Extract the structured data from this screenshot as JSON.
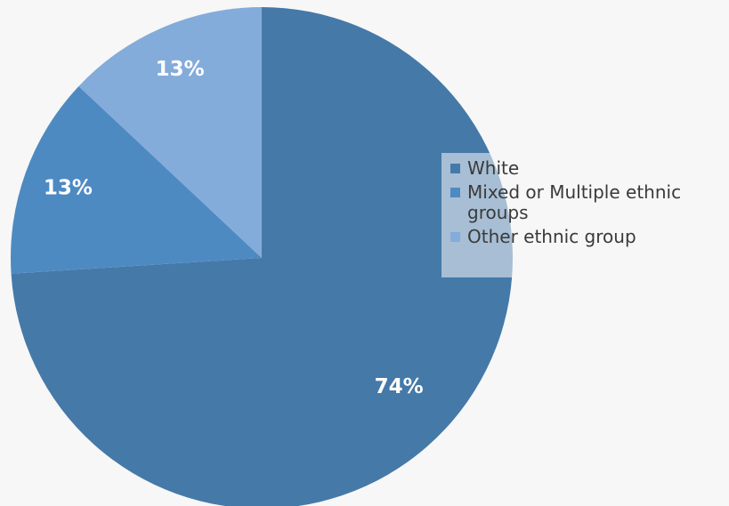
{
  "chart_data": {
    "type": "pie",
    "slices": [
      {
        "label": "White",
        "value": 74,
        "display": "74%",
        "color": "#4579a8"
      },
      {
        "label": "Mixed or Multiple ethnic groups",
        "value": 13,
        "display": "13%",
        "color": "#4e8ac2"
      },
      {
        "label": "Other ethnic group",
        "value": 13,
        "display": "13%",
        "color": "#84acda"
      }
    ],
    "start_angle_deg": 0,
    "direction": "clockwise",
    "legend_position": "right"
  }
}
